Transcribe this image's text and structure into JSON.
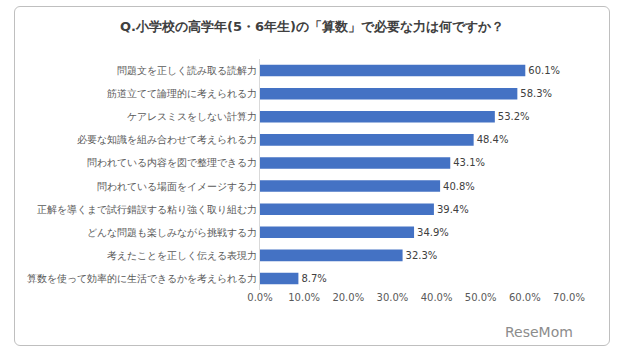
{
  "chart_data": {
    "type": "bar",
    "orientation": "horizontal",
    "title": "Q.小学校の高学年(5・6年生)の「算数」で必要な力は何ですか？",
    "categories": [
      "問題文を正しく読み取る読解力",
      "筋道立てて論理的に考えられる力",
      "ケアレスミスをしない計算力",
      "必要な知識を組み合わせて考えられる力",
      "問われている内容を図で整理できる力",
      "問われている場面をイメージする力",
      "正解を導くまで試行錯誤する粘り強く取り組む力",
      "どんな問題も楽しみながら挑戦する力",
      "考えたことを正しく伝える表現力",
      "算数を使って効率的に生活できるかを考えられる力"
    ],
    "values": [
      60.1,
      58.3,
      53.2,
      48.4,
      43.1,
      40.8,
      39.4,
      34.9,
      32.3,
      8.7
    ],
    "value_labels": [
      "60.1%",
      "58.3%",
      "53.2%",
      "48.4%",
      "43.1%",
      "40.8%",
      "39.4%",
      "34.9%",
      "32.3%",
      "8.7%"
    ],
    "color": "#4472c4",
    "data_labels": true,
    "grid": false,
    "xlim": [
      0,
      70
    ],
    "xticks": [
      {
        "value": 0,
        "label": "0.0%"
      },
      {
        "value": 10,
        "label": "10.0%"
      },
      {
        "value": 20,
        "label": "20.0%"
      },
      {
        "value": 30,
        "label": "30.0%"
      },
      {
        "value": 40,
        "label": "40.0%"
      },
      {
        "value": 50,
        "label": "50.0%"
      },
      {
        "value": 60,
        "label": "60.0%"
      },
      {
        "value": 70,
        "label": "70.0%"
      }
    ],
    "annotations": [
      "ReseMom"
    ]
  }
}
